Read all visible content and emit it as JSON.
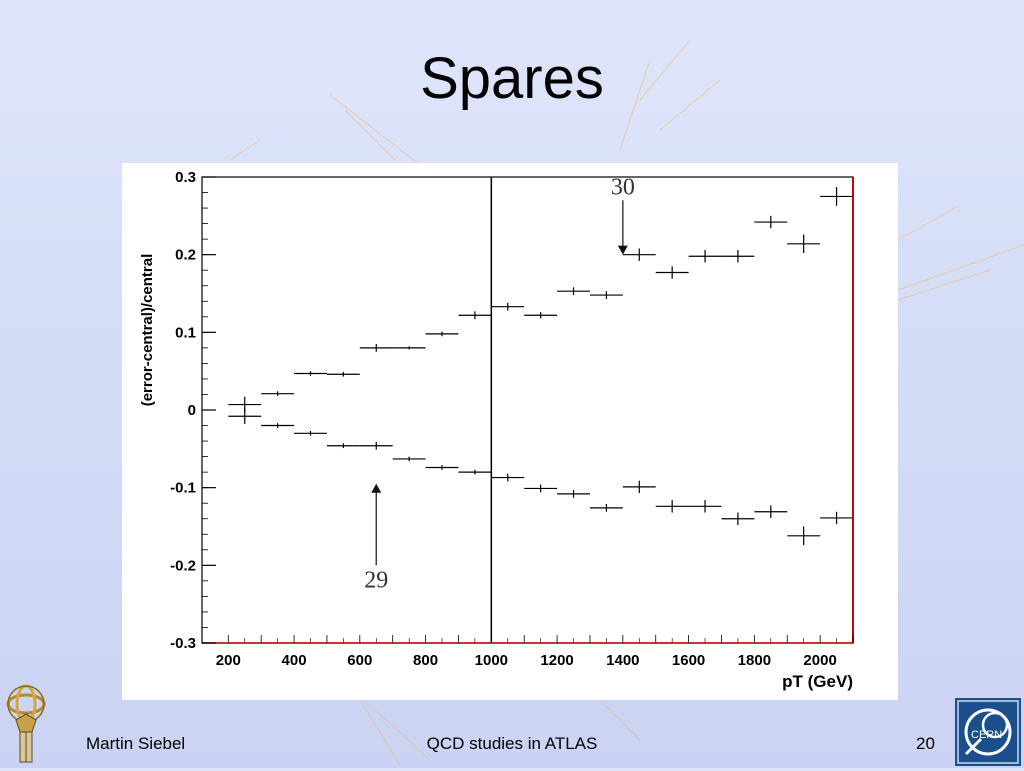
{
  "slide": {
    "title": "Spares",
    "footer_left": "Martin Siebel",
    "footer_center": "QCD studies in ATLAS",
    "footer_right": "20",
    "cern_logo_text": "CERN"
  },
  "chart_data": {
    "type": "scatter",
    "title": "",
    "xlabel": "pT (GeV)",
    "ylabel": "(error-central)/central",
    "xlim": [
      120,
      2100
    ],
    "ylim": [
      -0.3,
      0.3
    ],
    "x_ticks": [
      200,
      400,
      600,
      800,
      1000,
      1200,
      1400,
      1600,
      1800,
      2000
    ],
    "x_tick_labels": [
      "200",
      "400",
      "600",
      "800",
      "1000",
      "1200",
      "1400",
      "1600",
      "1800",
      "2000"
    ],
    "y_ticks": [
      0.3,
      0.2,
      0.1,
      0,
      -0.1,
      -0.2,
      -0.3
    ],
    "y_tick_labels": [
      "0.3",
      "0.2",
      "0.1",
      "0",
      "-0.1",
      "-0.2",
      "-0.3"
    ],
    "grid": false,
    "colors": {
      "frame": "#000000",
      "right_edge": "#cc0000",
      "points": "#000000"
    },
    "vertical_line_x": 1000,
    "series": [
      {
        "points": [
          {
            "x": 250,
            "y": 0.007,
            "xerr": 50,
            "yerr": 0.01
          },
          {
            "x": 350,
            "y": 0.021,
            "xerr": 50,
            "yerr": 0.003
          },
          {
            "x": 450,
            "y": 0.047,
            "xerr": 50,
            "yerr": 0.003
          },
          {
            "x": 550,
            "y": 0.046,
            "xerr": 50,
            "yerr": 0.003
          },
          {
            "x": 650,
            "y": 0.08,
            "xerr": 50,
            "yerr": 0.005
          },
          {
            "x": 750,
            "y": 0.08,
            "xerr": 50,
            "yerr": 0.002
          },
          {
            "x": 850,
            "y": 0.098,
            "xerr": 50,
            "yerr": 0.003
          },
          {
            "x": 950,
            "y": 0.122,
            "xerr": 50,
            "yerr": 0.005
          },
          {
            "x": 1050,
            "y": 0.133,
            "xerr": 50,
            "yerr": 0.005
          },
          {
            "x": 1150,
            "y": 0.122,
            "xerr": 50,
            "yerr": 0.004
          },
          {
            "x": 1250,
            "y": 0.153,
            "xerr": 50,
            "yerr": 0.005
          },
          {
            "x": 1350,
            "y": 0.148,
            "xerr": 50,
            "yerr": 0.005
          },
          {
            "x": 1450,
            "y": 0.2,
            "xerr": 50,
            "yerr": 0.008
          },
          {
            "x": 1550,
            "y": 0.177,
            "xerr": 50,
            "yerr": 0.008
          },
          {
            "x": 1650,
            "y": 0.198,
            "xerr": 50,
            "yerr": 0.008
          },
          {
            "x": 1750,
            "y": 0.198,
            "xerr": 50,
            "yerr": 0.008
          },
          {
            "x": 1850,
            "y": 0.242,
            "xerr": 50,
            "yerr": 0.008
          },
          {
            "x": 1950,
            "y": 0.214,
            "xerr": 50,
            "yerr": 0.012
          },
          {
            "x": 2050,
            "y": 0.275,
            "xerr": 50,
            "yerr": 0.012
          }
        ]
      },
      {
        "points": [
          {
            "x": 250,
            "y": -0.008,
            "xerr": 50,
            "yerr": 0.01
          },
          {
            "x": 350,
            "y": -0.02,
            "xerr": 50,
            "yerr": 0.003
          },
          {
            "x": 450,
            "y": -0.03,
            "xerr": 50,
            "yerr": 0.003
          },
          {
            "x": 550,
            "y": -0.046,
            "xerr": 50,
            "yerr": 0.003
          },
          {
            "x": 650,
            "y": -0.046,
            "xerr": 50,
            "yerr": 0.005
          },
          {
            "x": 750,
            "y": -0.063,
            "xerr": 50,
            "yerr": 0.003
          },
          {
            "x": 850,
            "y": -0.074,
            "xerr": 50,
            "yerr": 0.003
          },
          {
            "x": 950,
            "y": -0.08,
            "xerr": 50,
            "yerr": 0.003
          },
          {
            "x": 1050,
            "y": -0.087,
            "xerr": 50,
            "yerr": 0.005
          },
          {
            "x": 1150,
            "y": -0.101,
            "xerr": 50,
            "yerr": 0.005
          },
          {
            "x": 1250,
            "y": -0.108,
            "xerr": 50,
            "yerr": 0.005
          },
          {
            "x": 1350,
            "y": -0.126,
            "xerr": 50,
            "yerr": 0.005
          },
          {
            "x": 1450,
            "y": -0.099,
            "xerr": 50,
            "yerr": 0.008
          },
          {
            "x": 1550,
            "y": -0.124,
            "xerr": 50,
            "yerr": 0.008
          },
          {
            "x": 1650,
            "y": -0.124,
            "xerr": 50,
            "yerr": 0.008
          },
          {
            "x": 1750,
            "y": -0.14,
            "xerr": 50,
            "yerr": 0.008
          },
          {
            "x": 1850,
            "y": -0.131,
            "xerr": 50,
            "yerr": 0.008
          },
          {
            "x": 1950,
            "y": -0.162,
            "xerr": 50,
            "yerr": 0.012
          },
          {
            "x": 2050,
            "y": -0.139,
            "xerr": 50,
            "yerr": 0.008
          }
        ]
      }
    ],
    "annotations": [
      {
        "text": "30",
        "x": 1400,
        "y": 0.27,
        "arrow_to_x": 1400,
        "arrow_to_y": 0.2,
        "direction": "down"
      },
      {
        "text": "29",
        "x": 650,
        "y": -0.2,
        "arrow_to_x": 650,
        "arrow_to_y": -0.095,
        "direction": "up"
      }
    ]
  }
}
